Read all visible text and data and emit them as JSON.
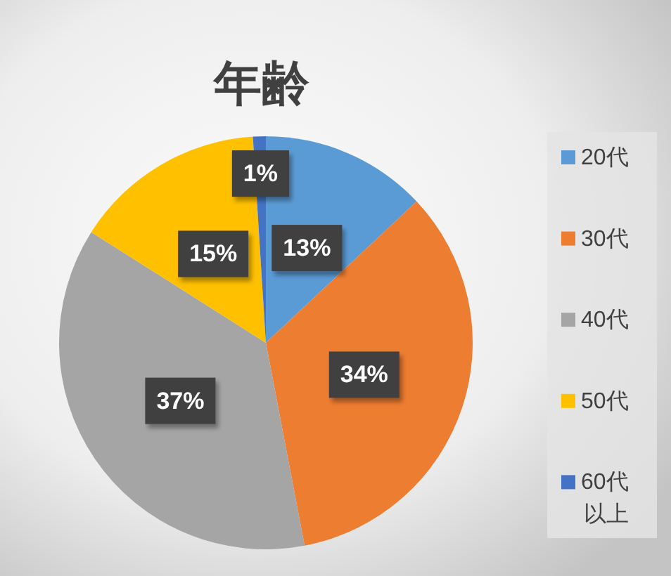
{
  "chart_data": {
    "type": "pie",
    "title": "年齢",
    "categories": [
      "20代",
      "30代",
      "40代",
      "50代",
      "60代以上"
    ],
    "values": [
      13,
      34,
      37,
      15,
      1
    ],
    "colors": [
      "#5b9bd5",
      "#ed7d31",
      "#a5a5a5",
      "#ffc000",
      "#4472c4"
    ],
    "value_labels": [
      "13%",
      "34%",
      "37%",
      "15%",
      "1%"
    ],
    "legend": "right"
  }
}
